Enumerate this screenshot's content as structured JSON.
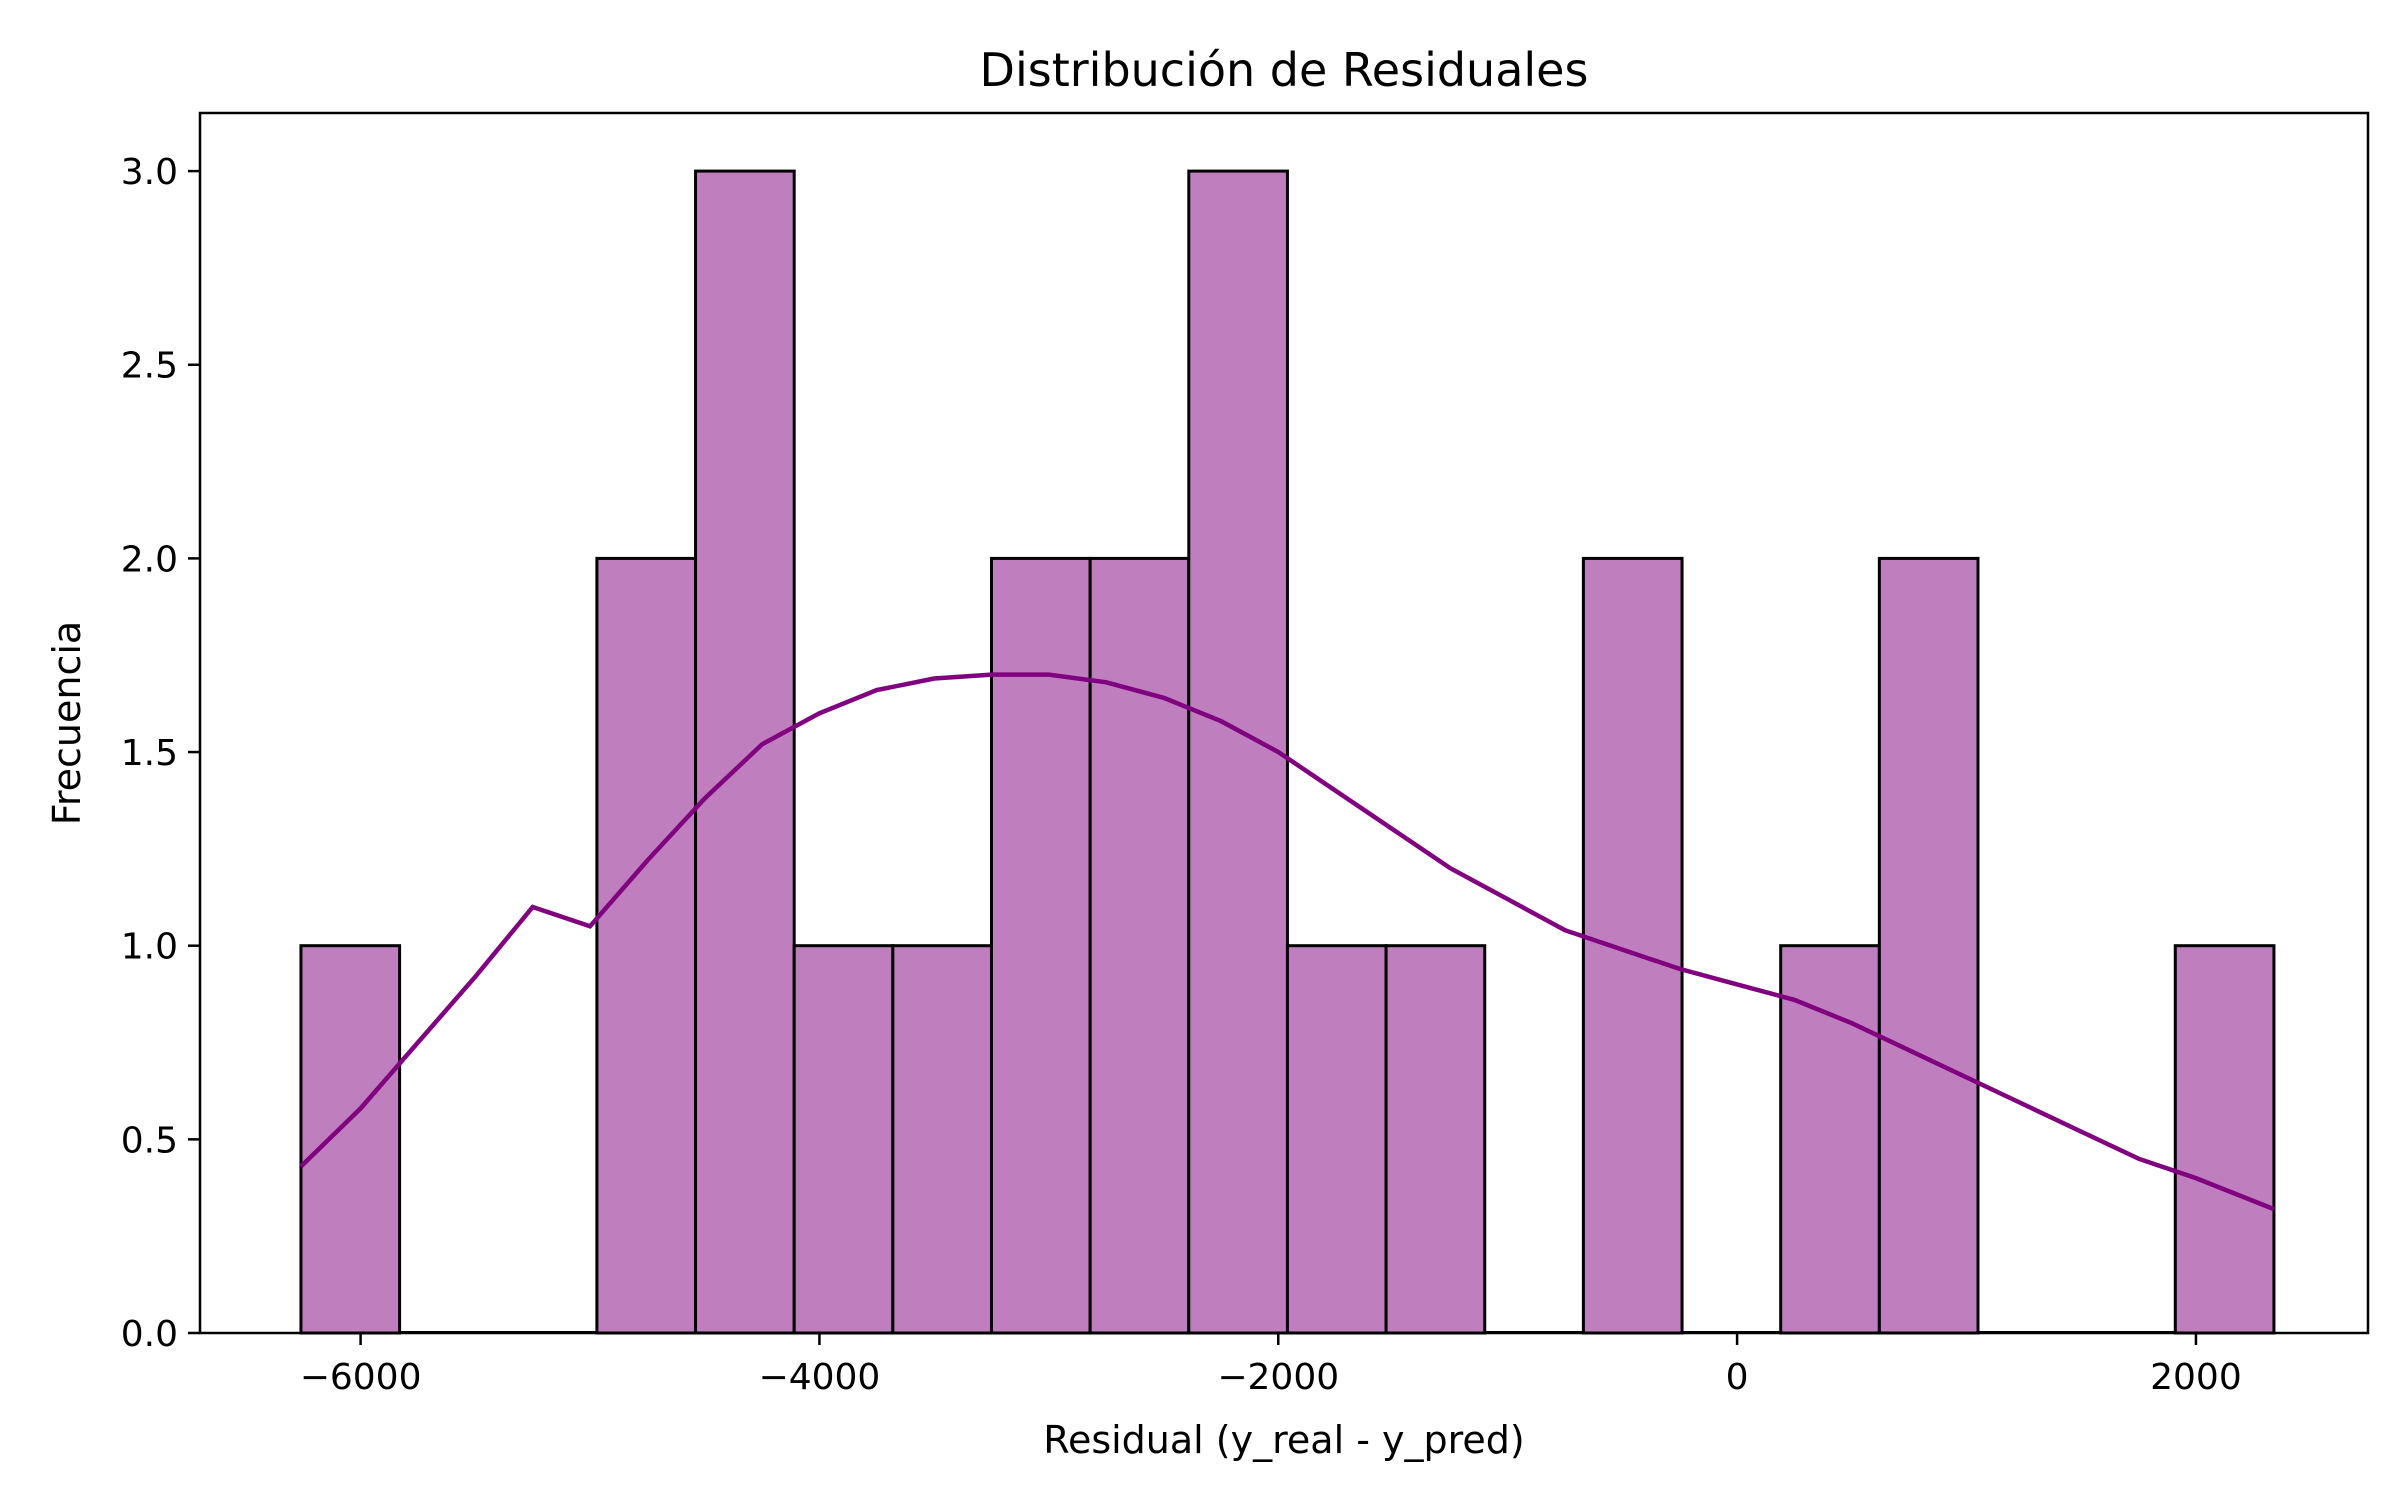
{
  "chart_data": {
    "type": "bar",
    "title": "Distribución de Residuales",
    "xlabel": "Residual (y_real - y_pred)",
    "ylabel": "Frecuencia",
    "xlim": [
      -6700,
      2750
    ],
    "ylim": [
      0,
      3.15
    ],
    "xticks": [
      -6000,
      -4000,
      -2000,
      0,
      2000
    ],
    "xtick_labels": [
      "−6000",
      "−4000",
      "−2000",
      "0",
      "2000"
    ],
    "yticks": [
      0.0,
      0.5,
      1.0,
      1.5,
      2.0,
      2.5,
      3.0
    ],
    "ytick_labels": [
      "0.0",
      "0.5",
      "1.0",
      "1.5",
      "2.0",
      "2.5",
      "3.0"
    ],
    "bin_edges": [
      -6260,
      -5830,
      -5400,
      -4970,
      -4540,
      -4110,
      -3680,
      -3250,
      -2820,
      -2390,
      -1960,
      -1530,
      -1100,
      -670,
      -240,
      190,
      620,
      1050,
      1480,
      1910,
      2340
    ],
    "counts": [
      1,
      0,
      0,
      2,
      3,
      1,
      1,
      2,
      2,
      3,
      1,
      1,
      0,
      2,
      0,
      1,
      2,
      0,
      0,
      1
    ],
    "kde": {
      "x": [
        -6260,
        -6000,
        -5750,
        -5500,
        -5250,
        -5000,
        -4750,
        -4500,
        -4250,
        -4000,
        -3750,
        -3500,
        -3250,
        -3000,
        -2750,
        -2500,
        -2250,
        -2000,
        -1750,
        -1500,
        -1250,
        -1000,
        -750,
        -500,
        -250,
        0,
        250,
        500,
        750,
        1000,
        1250,
        1500,
        1750,
        2000,
        2340
      ],
      "y": [
        0.43,
        0.58,
        0.75,
        0.92,
        1.1,
        1.05,
        1.22,
        1.38,
        1.52,
        1.6,
        1.66,
        1.69,
        1.7,
        1.7,
        1.68,
        1.64,
        1.58,
        1.5,
        1.4,
        1.3,
        1.2,
        1.12,
        1.04,
        0.99,
        0.94,
        0.9,
        0.86,
        0.8,
        0.73,
        0.66,
        0.59,
        0.52,
        0.45,
        0.4,
        0.32
      ]
    },
    "colors": {
      "bar": "#bf7fbf",
      "edge": "#000000",
      "kde": "#800080"
    },
    "grid": false,
    "legend": "none"
  }
}
